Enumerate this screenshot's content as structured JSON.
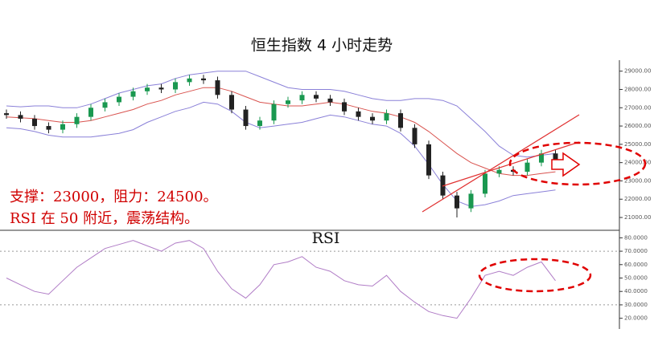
{
  "chart_data": [
    {
      "type": "candlestick",
      "title": "恒生指数 4 小时走势",
      "annotations": [
        "支撑：23000，阻力：24500。",
        "RSI 在 50 附近，震荡结构。"
      ],
      "open": [
        26700,
        26600,
        26400,
        26000,
        25800,
        26100,
        26500,
        27000,
        27300,
        27600,
        27900,
        28100,
        28000,
        28400,
        28600,
        28500,
        27700,
        26900,
        26000,
        26300,
        27200,
        27400,
        27700,
        27500,
        27300,
        26800,
        26500,
        26300,
        26700,
        25900,
        25000,
        23300,
        22200,
        21500,
        22300,
        23400,
        23600,
        23500,
        24000,
        24500
      ],
      "high": [
        26900,
        26800,
        26600,
        26200,
        26300,
        26700,
        27200,
        27500,
        27800,
        28100,
        28300,
        28300,
        28600,
        28800,
        28800,
        28700,
        27900,
        27100,
        26500,
        27400,
        27600,
        27900,
        27900,
        27700,
        27500,
        27000,
        26700,
        26900,
        26900,
        26100,
        25200,
        23500,
        22400,
        22500,
        23600,
        23800,
        23800,
        24200,
        24700,
        24700
      ],
      "low": [
        26400,
        26200,
        25800,
        25600,
        25600,
        25900,
        26300,
        26800,
        27100,
        27400,
        27700,
        27800,
        27800,
        28200,
        28300,
        27500,
        26700,
        25800,
        25800,
        26100,
        27000,
        27200,
        27300,
        27100,
        26600,
        26300,
        26100,
        26100,
        25700,
        24800,
        23100,
        22000,
        21000,
        21300,
        22100,
        23200,
        23300,
        23300,
        23800,
        23900
      ],
      "close": [
        26600,
        26400,
        26000,
        25800,
        26100,
        26500,
        27000,
        27300,
        27600,
        27900,
        28100,
        28000,
        28400,
        28600,
        28500,
        27700,
        26900,
        26000,
        26300,
        27200,
        27400,
        27700,
        27500,
        27300,
        26800,
        26500,
        26300,
        26700,
        25900,
        25000,
        23300,
        22200,
        21500,
        22300,
        23400,
        23600,
        23500,
        24000,
        24500,
        24100
      ],
      "up_color": "#1a9850",
      "down_color": "#222222",
      "bands": [
        {
          "color": "#8a80d8",
          "values": [
            27100,
            27050,
            27100,
            27100,
            27000,
            27000,
            27200,
            27500,
            27800,
            28000,
            28200,
            28300,
            28600,
            28800,
            28900,
            29000,
            29000,
            29000,
            28700,
            28400,
            28100,
            28000,
            28000,
            28000,
            27900,
            27700,
            27500,
            27400,
            27400,
            27500,
            27500,
            27400,
            27100,
            26400,
            25700,
            24900,
            24400,
            24300,
            24400,
            24500
          ]
        },
        {
          "color": "#d9534f",
          "values": [
            26500,
            26450,
            26400,
            26300,
            26200,
            26200,
            26300,
            26500,
            26700,
            26900,
            27200,
            27400,
            27700,
            27900,
            28100,
            28100,
            27900,
            27600,
            27300,
            27200,
            27100,
            27100,
            27200,
            27300,
            27200,
            27000,
            26800,
            26700,
            26500,
            26200,
            25700,
            25100,
            24500,
            24000,
            23700,
            23400,
            23300,
            23300,
            23400,
            23500
          ]
        },
        {
          "color": "#8a80d8",
          "values": [
            25900,
            25850,
            25700,
            25500,
            25400,
            25400,
            25400,
            25500,
            25600,
            25800,
            26200,
            26500,
            26800,
            27000,
            27300,
            27200,
            26800,
            26200,
            25900,
            26000,
            26100,
            26200,
            26400,
            26600,
            26500,
            26300,
            26100,
            26000,
            25600,
            24900,
            23900,
            22800,
            21900,
            21600,
            21700,
            21900,
            22200,
            22300,
            22400,
            22500
          ]
        }
      ],
      "ylim": [
        20300,
        29600
      ],
      "yticks": [
        {
          "value": 21000,
          "label": "21000.00"
        },
        {
          "value": 22000,
          "label": "22000.00"
        },
        {
          "value": 23000,
          "label": "23000.00"
        },
        {
          "value": 24000,
          "label": "24000.00"
        },
        {
          "value": 25000,
          "label": "25000.00"
        },
        {
          "value": 26000,
          "label": "26000.00"
        },
        {
          "value": 27000,
          "label": "27000.00"
        },
        {
          "value": 28000,
          "label": "28000.00"
        },
        {
          "value": 29000,
          "label": "29000.00"
        }
      ]
    },
    {
      "type": "line",
      "title": "RSI",
      "color": "#b07cc6",
      "values": [
        50,
        45,
        40,
        38,
        48,
        58,
        65,
        72,
        75,
        78,
        74,
        70,
        76,
        78,
        72,
        55,
        42,
        35,
        45,
        60,
        62,
        66,
        58,
        55,
        48,
        45,
        44,
        52,
        40,
        32,
        25,
        22,
        20,
        35,
        52,
        55,
        52,
        58,
        62,
        48
      ],
      "levels": [
        70,
        30
      ],
      "ylim": [
        15,
        85
      ],
      "yticks": [
        {
          "value": 20,
          "label": "20.0000"
        },
        {
          "value": 30,
          "label": "30.0000"
        },
        {
          "value": 40,
          "label": "40.0000"
        },
        {
          "value": 50,
          "label": "50.0000"
        },
        {
          "value": 60,
          "label": "60.0000"
        },
        {
          "value": 70,
          "label": "70.0000"
        },
        {
          "value": 80,
          "label": "80.0000"
        }
      ]
    }
  ]
}
